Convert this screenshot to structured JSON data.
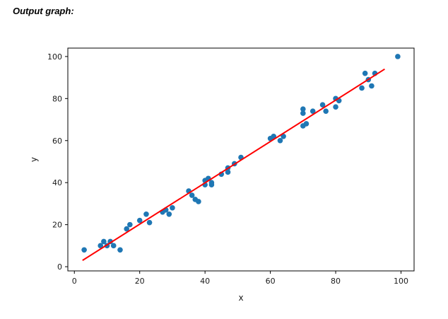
{
  "page": {
    "title": "Output graph:"
  },
  "chart_data": {
    "type": "scatter",
    "title": "",
    "xlabel": "x",
    "ylabel": "y",
    "xlim": [
      -2,
      104
    ],
    "ylim": [
      -2,
      104
    ],
    "xticks": [
      0,
      20,
      40,
      60,
      80,
      100
    ],
    "yticks": [
      0,
      20,
      40,
      60,
      80,
      100
    ],
    "grid": false,
    "legend": "none",
    "point_color": "#1f77b4",
    "line_color": "#ff0000",
    "background": "#ffffff",
    "points": {
      "x": [
        3,
        8,
        9,
        10,
        11,
        12,
        14,
        16,
        17,
        20,
        22,
        23,
        27,
        28,
        29,
        30,
        35,
        36,
        37,
        38,
        40,
        40,
        41,
        42,
        42,
        45,
        47,
        47,
        49,
        51,
        60,
        61,
        63,
        64,
        70,
        70,
        70,
        71,
        73,
        76,
        77,
        80,
        80,
        81,
        88,
        89,
        90,
        91,
        92,
        99
      ],
      "y": [
        8,
        10,
        12,
        10,
        12,
        10,
        8,
        18,
        20,
        22,
        25,
        21,
        26,
        27,
        25,
        28,
        36,
        34,
        32,
        31,
        39,
        41,
        42,
        39,
        40,
        44,
        47,
        45,
        49,
        52,
        61,
        62,
        60,
        62,
        73,
        75,
        67,
        68,
        74,
        77,
        74,
        80,
        76,
        79,
        85,
        92,
        89,
        86,
        92,
        100
      ]
    },
    "fit_line": {
      "x": [
        2.5,
        95
      ],
      "y": [
        3,
        94
      ]
    }
  }
}
